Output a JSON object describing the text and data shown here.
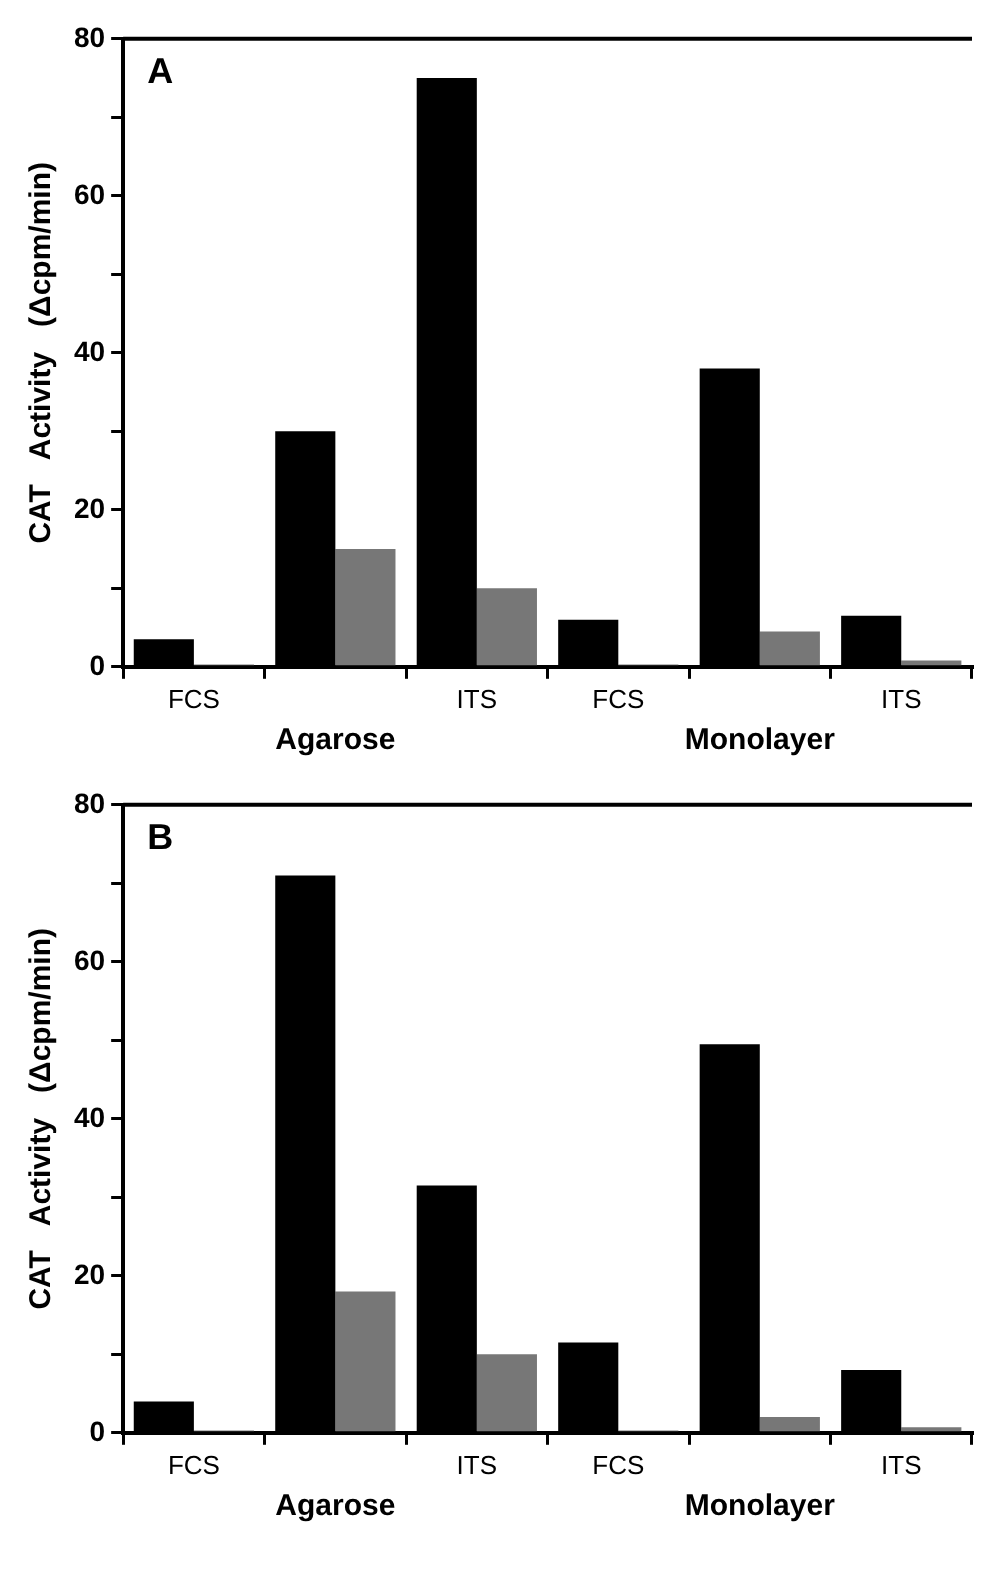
{
  "chart_data": [
    {
      "type": "bar",
      "title": "A",
      "ylabel": "CAT   Activity   (Δcpm/min)",
      "categories": [
        "FCS",
        null,
        "ITS",
        "FCS",
        null,
        "ITS"
      ],
      "series": [
        {
          "color": "#000000",
          "values": [
            3.5,
            30,
            75,
            6,
            38,
            6.5
          ]
        },
        {
          "color": "#777777",
          "values": [
            0.3,
            15,
            10,
            0.3,
            4.5,
            0.8
          ]
        }
      ],
      "ylim": [
        0,
        80
      ],
      "yticks": [
        0,
        {
          "value": 10,
          "label": null
        },
        20,
        {
          "value": 30,
          "label": null
        },
        40,
        {
          "value": 50,
          "label": null
        },
        60,
        {
          "value": 70,
          "label": null
        },
        80
      ],
      "annotations": [
        "Agarose",
        "Monolayer"
      ],
      "grid": false,
      "legend": false
    },
    {
      "type": "bar",
      "title": "B",
      "ylabel": "CAT   Activity   (Δcpm/min)",
      "categories": [
        "FCS",
        null,
        "ITS",
        "FCS",
        null,
        "ITS"
      ],
      "series": [
        {
          "color": "#000000",
          "values": [
            4,
            71,
            31.5,
            11.5,
            49.5,
            8
          ]
        },
        {
          "color": "#777777",
          "values": [
            0.3,
            18,
            10,
            0.3,
            2,
            0.7
          ]
        }
      ],
      "ylim": [
        0,
        80
      ],
      "yticks": [
        0,
        {
          "value": 10,
          "label": null
        },
        20,
        {
          "value": 30,
          "label": null
        },
        40,
        {
          "value": 50,
          "label": null
        },
        60,
        {
          "value": 70,
          "label": null
        },
        80
      ],
      "annotations": [
        "Agarose",
        "Monolayer"
      ],
      "grid": false,
      "legend": false
    }
  ]
}
